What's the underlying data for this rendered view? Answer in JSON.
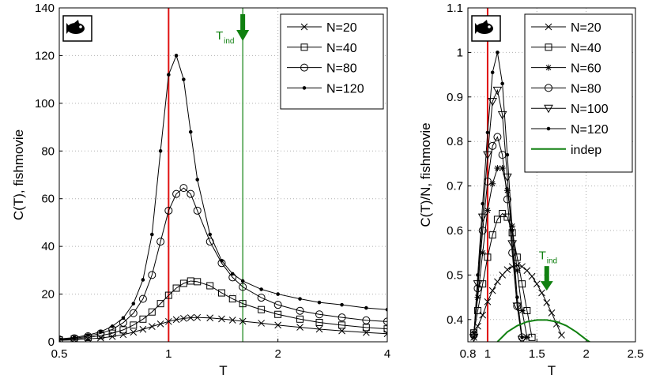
{
  "colors": {
    "red": "#e01010",
    "green": "#108010",
    "black": "#000000"
  },
  "chart_data": [
    {
      "type": "line",
      "xlabel": "T",
      "ylabel": "C(T), fishmovie",
      "xscale": "log",
      "xlim": [
        0.5,
        4
      ],
      "ylim": [
        0,
        140
      ],
      "xticks": [
        0.5,
        1,
        2,
        4
      ],
      "xtick_labels": [
        "0.5",
        "1",
        "2",
        "4"
      ],
      "yticks": [
        0,
        20,
        40,
        60,
        80,
        100,
        120,
        140
      ],
      "ytick_labels": [
        "0",
        "20",
        "40",
        "60",
        "80",
        "100",
        "120",
        "140"
      ],
      "grid": true,
      "legend_position": "top-right",
      "icon": "fish-icon",
      "vlines": [
        {
          "x": 1,
          "color": "#e01010"
        },
        {
          "x": 1.6,
          "color": "#108010"
        }
      ],
      "annotation": {
        "text": "T",
        "sub": "ind",
        "x": 1.6,
        "color": "#108010"
      },
      "x": [
        0.5,
        0.55,
        0.6,
        0.65,
        0.7,
        0.75,
        0.8,
        0.85,
        0.9,
        0.95,
        1.0,
        1.05,
        1.1,
        1.15,
        1.2,
        1.3,
        1.4,
        1.5,
        1.6,
        1.8,
        2.0,
        2.3,
        2.6,
        3.0,
        3.5,
        4.0
      ],
      "series": [
        {
          "name": "N=20",
          "marker": "x",
          "values": [
            0.6,
            0.8,
            1.2,
            1.6,
            2.2,
            3.0,
            4.0,
            5.2,
            6.4,
            7.5,
            8.5,
            9.3,
            9.8,
            10.1,
            10.2,
            10.0,
            9.6,
            9.1,
            8.6,
            7.8,
            7.0,
            6.1,
            5.3,
            4.6,
            3.9,
            3.4
          ]
        },
        {
          "name": "N=40",
          "marker": "square",
          "values": [
            0.8,
            1.2,
            1.8,
            2.6,
            3.6,
            5.0,
            7.0,
            9.5,
            12.5,
            16.0,
            19.5,
            22.5,
            24.5,
            25.5,
            25.2,
            23.5,
            20.5,
            18.0,
            16.0,
            13.5,
            11.5,
            9.5,
            8.1,
            7.0,
            6.0,
            5.4
          ]
        },
        {
          "name": "N=80",
          "marker": "circle",
          "values": [
            1.0,
            1.5,
            2.3,
            3.5,
            5.2,
            8.0,
            12.0,
            18.0,
            28.0,
            42.0,
            55.0,
            62.0,
            64.5,
            62.0,
            55.0,
            42.0,
            33.0,
            27.0,
            23.0,
            18.5,
            15.5,
            13.0,
            11.5,
            10.2,
            9.0,
            8.5
          ]
        },
        {
          "name": "N=120",
          "marker": "dot",
          "values": [
            1.2,
            1.8,
            2.8,
            4.2,
            6.5,
            10.0,
            16.0,
            26.0,
            45.0,
            80.0,
            112.0,
            120.0,
            110.0,
            88.0,
            68.0,
            45.0,
            34.0,
            28.5,
            25.5,
            22.0,
            20.0,
            18.0,
            16.5,
            15.5,
            14.2,
            13.5
          ]
        }
      ]
    },
    {
      "type": "line",
      "xlabel": "T",
      "ylabel": "C(T)/N, fishmovie",
      "xlim": [
        0.8,
        2.5
      ],
      "ylim": [
        0.35,
        1.1
      ],
      "xticks": [
        0.8,
        1,
        1.5,
        2,
        2.5
      ],
      "xtick_labels": [
        "0.8",
        "1",
        "1.5",
        "2",
        "2.5"
      ],
      "yticks": [
        0.4,
        0.5,
        0.6,
        0.7,
        0.8,
        0.9,
        1.0,
        1.1
      ],
      "ytick_labels": [
        "0.4",
        "0.5",
        "0.6",
        "0.7",
        "0.8",
        "0.9",
        "1",
        "1.1"
      ],
      "grid": true,
      "legend_position": "top-right",
      "icon": "fish-icon",
      "vlines": [
        {
          "x": 1,
          "color": "#e01010"
        }
      ],
      "annotation": {
        "text": "T",
        "sub": "ind",
        "x": 1.6,
        "y": 0.46,
        "color": "#108010"
      },
      "x": [
        0.86,
        0.9,
        0.95,
        1.0,
        1.05,
        1.1,
        1.15,
        1.2,
        1.25,
        1.3,
        1.35,
        1.4,
        1.45,
        1.5,
        1.55,
        1.6,
        1.65,
        1.7,
        1.75
      ],
      "series": [
        {
          "name": "N=20",
          "marker": "x",
          "values": [
            0.36,
            0.385,
            0.41,
            0.44,
            0.465,
            0.485,
            0.5,
            0.512,
            0.519,
            0.522,
            0.519,
            0.51,
            0.497,
            0.48,
            0.46,
            0.438,
            0.415,
            0.39,
            0.365
          ]
        },
        {
          "name": "N=40",
          "marker": "square",
          "values": [
            0.37,
            0.42,
            0.48,
            0.54,
            0.59,
            0.625,
            0.638,
            0.63,
            0.595,
            0.54,
            0.48,
            0.42,
            0.36,
            null,
            null,
            null,
            null,
            null,
            null
          ]
        },
        {
          "name": "N=60",
          "marker": "star",
          "values": [
            0.37,
            0.45,
            0.55,
            0.645,
            0.705,
            0.74,
            0.74,
            0.69,
            0.61,
            0.51,
            0.42,
            0.36,
            null,
            null,
            null,
            null,
            null,
            null,
            null
          ]
        },
        {
          "name": "N=80",
          "marker": "circle",
          "values": [
            0.365,
            0.47,
            0.6,
            0.71,
            0.79,
            0.81,
            0.77,
            0.67,
            0.55,
            0.43,
            0.36,
            null,
            null,
            null,
            null,
            null,
            null,
            null,
            null
          ]
        },
        {
          "name": "N=100",
          "marker": "triangle-down",
          "values": [
            0.36,
            0.48,
            0.63,
            0.77,
            0.89,
            0.915,
            0.86,
            0.72,
            0.57,
            0.43,
            0.355,
            null,
            null,
            null,
            null,
            null,
            null,
            null,
            null
          ]
        },
        {
          "name": "N=120",
          "marker": "dot",
          "values": [
            0.36,
            0.5,
            0.66,
            0.82,
            0.955,
            1.0,
            0.93,
            0.77,
            0.6,
            0.45,
            0.36,
            null,
            null,
            null,
            null,
            null,
            null,
            null,
            null
          ]
        },
        {
          "name": "indep",
          "marker": "none",
          "color": "#108010",
          "x": [
            1.1,
            1.2,
            1.3,
            1.4,
            1.5,
            1.6,
            1.7,
            1.8,
            1.9,
            2.0,
            2.1,
            2.2
          ],
          "values": [
            0.35,
            0.372,
            0.386,
            0.395,
            0.399,
            0.399,
            0.395,
            0.386,
            0.372,
            0.355,
            0.34,
            0.32
          ]
        }
      ]
    }
  ]
}
